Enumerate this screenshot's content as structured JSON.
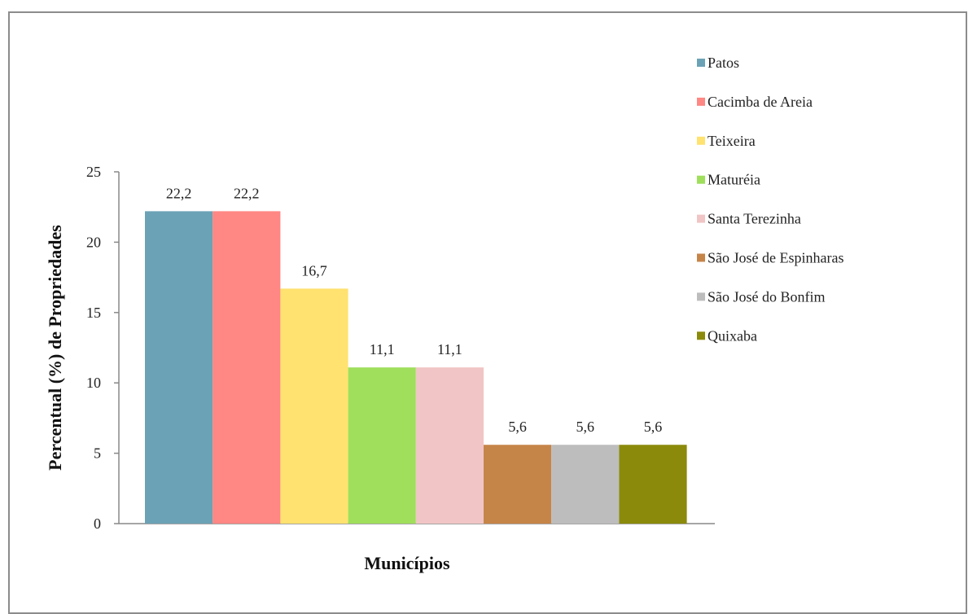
{
  "chart_data": {
    "type": "bar",
    "title": "",
    "xlabel": "Municípios",
    "ylabel": "Percentual (%) de Propriedades",
    "ylim": [
      0,
      25
    ],
    "yticks": [
      0,
      5,
      10,
      15,
      20,
      25
    ],
    "grid": false,
    "legend_position": "right",
    "categories": [
      "Patos",
      "Cacimba de Areia",
      "Teixeira",
      "Maturéia",
      "Santa Terezinha",
      "São José de Espinharas",
      "São José do Bonfim",
      "Quixaba"
    ],
    "values": [
      22.2,
      22.2,
      16.7,
      11.1,
      11.1,
      5.6,
      5.6,
      5.6
    ],
    "data_labels": [
      "22,2",
      "22,2",
      "16,7",
      "11,1",
      "11,1",
      "5,6",
      "5,6",
      "5,6"
    ],
    "colors": [
      "#6CA2B5",
      "#FF8784",
      "#FFE26F",
      "#9FDF5C",
      "#F1C5C5",
      "#C68548",
      "#BDBDBD",
      "#8B8A0B"
    ]
  }
}
